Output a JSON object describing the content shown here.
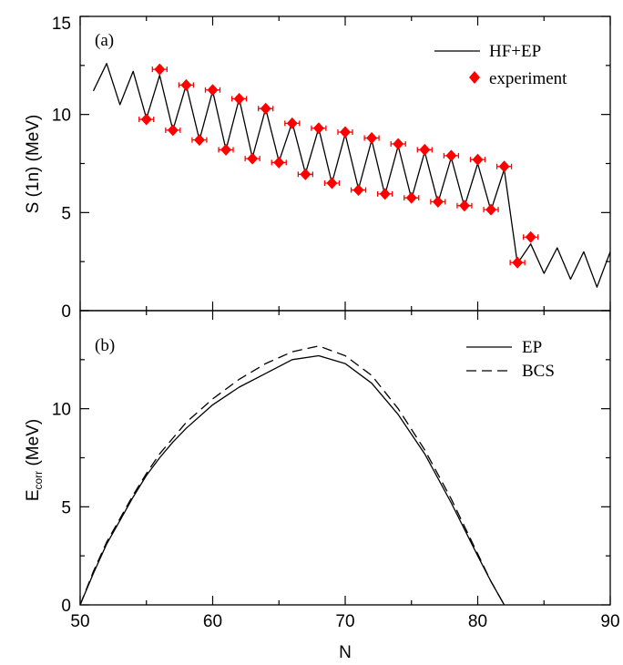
{
  "chart_data": [
    {
      "type": "line",
      "panel_label": "(a)",
      "ylabel": "S (1n) (MeV)",
      "xlim": [
        50,
        90
      ],
      "ylim": [
        0,
        15
      ],
      "x_ticks": [
        "50",
        "60",
        "70",
        "80",
        "90"
      ],
      "y_ticks": [
        "0",
        "5",
        "10",
        "15"
      ],
      "legend_position": "top-right",
      "series": [
        {
          "name": "HF+EP",
          "style": "solid",
          "x": [
            51,
            52,
            53,
            54,
            55,
            56,
            57,
            58,
            59,
            60,
            61,
            62,
            63,
            64,
            65,
            66,
            67,
            68,
            69,
            70,
            71,
            72,
            73,
            74,
            75,
            76,
            77,
            78,
            79,
            80,
            81,
            82,
            83,
            84,
            85,
            86,
            87,
            88,
            89,
            90
          ],
          "y": [
            11.2,
            12.6,
            10.5,
            12.2,
            9.8,
            12.0,
            9.2,
            11.5,
            8.7,
            11.2,
            8.2,
            10.8,
            7.8,
            10.3,
            7.6,
            9.6,
            7.0,
            9.3,
            6.5,
            9.0,
            6.2,
            8.7,
            5.9,
            8.4,
            5.7,
            8.1,
            5.5,
            7.8,
            5.3,
            7.5,
            5.1,
            7.2,
            2.4,
            3.4,
            1.9,
            3.2,
            1.6,
            3.0,
            1.2,
            3.0
          ]
        },
        {
          "name": "experiment",
          "style": "marker",
          "x": [
            55,
            56,
            57,
            58,
            59,
            60,
            61,
            62,
            63,
            64,
            65,
            66,
            67,
            68,
            69,
            70,
            71,
            72,
            73,
            74,
            75,
            76,
            77,
            78,
            79,
            80,
            81,
            82,
            83,
            84
          ],
          "y": [
            9.75,
            12.3,
            9.2,
            11.5,
            8.7,
            11.25,
            8.2,
            10.8,
            7.75,
            10.3,
            7.55,
            9.55,
            6.95,
            9.3,
            6.5,
            9.1,
            6.15,
            8.8,
            5.95,
            8.5,
            5.75,
            8.2,
            5.55,
            7.9,
            5.35,
            7.7,
            5.15,
            7.35,
            2.45,
            3.75
          ]
        }
      ]
    },
    {
      "type": "line",
      "panel_label": "(b)",
      "ylabel_main": "E",
      "ylabel_sub": "corr",
      "ylabel_rest": " (MeV)",
      "xlabel": "N",
      "xlim": [
        50,
        90
      ],
      "ylim": [
        0,
        15
      ],
      "x_ticks": [
        "50",
        "60",
        "70",
        "80",
        "90"
      ],
      "y_ticks": [
        "0",
        "5",
        "10"
      ],
      "legend_position": "top-right",
      "series": [
        {
          "name": "EP",
          "style": "solid",
          "x": [
            50,
            51,
            52,
            53,
            54,
            55,
            56,
            57,
            58,
            60,
            62,
            64,
            66,
            68,
            70,
            72,
            74,
            76,
            78,
            80,
            81,
            82
          ],
          "y": [
            0,
            1.6,
            3.1,
            4.3,
            5.5,
            6.6,
            7.5,
            8.3,
            9.0,
            10.2,
            11.1,
            11.8,
            12.5,
            12.7,
            12.3,
            11.3,
            9.7,
            7.7,
            5.2,
            2.5,
            1.2,
            0
          ]
        },
        {
          "name": "BCS",
          "style": "dashed",
          "x": [
            50,
            51,
            52,
            53,
            54,
            55,
            56,
            57,
            58,
            60,
            62,
            64,
            66,
            68,
            70,
            72,
            74,
            76,
            78,
            80,
            81,
            82
          ],
          "y": [
            0,
            1.7,
            3.2,
            4.4,
            5.6,
            6.7,
            7.7,
            8.5,
            9.3,
            10.5,
            11.5,
            12.3,
            12.9,
            13.2,
            12.7,
            11.7,
            10.0,
            7.9,
            5.4,
            2.6,
            1.2,
            0
          ]
        }
      ]
    }
  ]
}
